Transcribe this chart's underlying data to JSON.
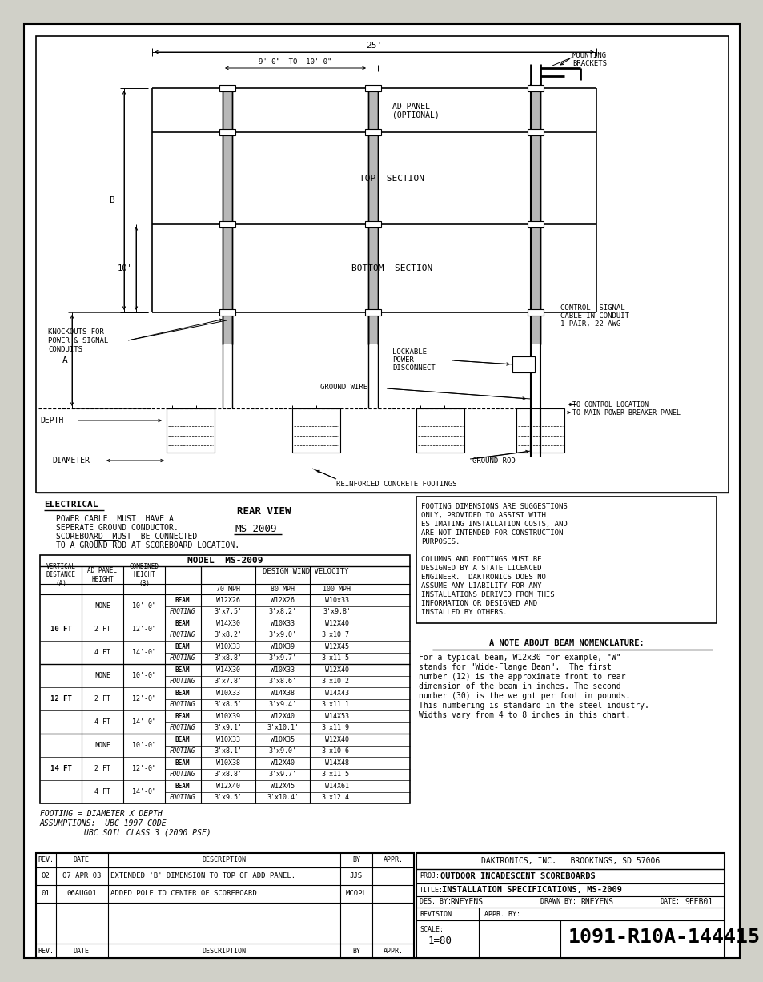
{
  "bg_color": "#ffffff",
  "page_bg": "#e8e8e0",
  "line_color": "#000000",
  "table_rows": [
    [
      "NONE",
      "10'-0\"",
      "BEAM",
      "W12X26",
      "W12X26",
      "W10x33"
    ],
    [
      "",
      "",
      "FOOTING",
      "3'x7.5'",
      "3'x8.2'",
      "3'x9.8'"
    ],
    [
      "2 FT",
      "12'-0\"",
      "BEAM",
      "W14X30",
      "W10X33",
      "W12X40"
    ],
    [
      "",
      "",
      "FOOTING",
      "3'x8.2'",
      "3'x9.0'",
      "3'x10.7'"
    ],
    [
      "4 FT",
      "14'-0\"",
      "BEAM",
      "W10X33",
      "W10X39",
      "W12X45"
    ],
    [
      "",
      "",
      "FOOTING",
      "3'x8.8'",
      "3'x9.7'",
      "3'x11.5'"
    ],
    [
      "NONE",
      "10'-0\"",
      "BEAM",
      "W14X30",
      "W10X33",
      "W12X40"
    ],
    [
      "",
      "",
      "FOOTING",
      "3'x7.8'",
      "3'x8.6'",
      "3'x10.2'"
    ],
    [
      "2 FT",
      "12'-0\"",
      "BEAM",
      "W10X33",
      "W14X38",
      "W14X43"
    ],
    [
      "",
      "",
      "FOOTING",
      "3'x8.5'",
      "3'x9.4'",
      "3'x11.1'"
    ],
    [
      "4 FT",
      "14'-0\"",
      "BEAM",
      "W10X39",
      "W12X40",
      "W14X53"
    ],
    [
      "",
      "",
      "FOOTING",
      "3'x9.1'",
      "3'x10.1'",
      "3'x11.9'"
    ],
    [
      "NONE",
      "10'-0\"",
      "BEAM",
      "W10X33",
      "W10X35",
      "W12X40"
    ],
    [
      "",
      "",
      "FOOTING",
      "3'x8.1'",
      "3'x9.0'",
      "3'x10.6'"
    ],
    [
      "2 FT",
      "12'-0\"",
      "BEAM",
      "W10X38",
      "W12X40",
      "W14X48"
    ],
    [
      "",
      "",
      "FOOTING",
      "3'x8.8'",
      "3'x9.7'",
      "3'x11.5'"
    ],
    [
      "4 FT",
      "14'-0\"",
      "BEAM",
      "W12X40",
      "W12X45",
      "W14X61"
    ],
    [
      "",
      "",
      "FOOTING",
      "3'x9.5'",
      "3'x10.4'",
      "3'x12.4'"
    ]
  ],
  "vert_groups": [
    [
      0,
      6,
      "10 FT"
    ],
    [
      6,
      12,
      "12 FT"
    ],
    [
      12,
      18,
      "14 FT"
    ]
  ]
}
